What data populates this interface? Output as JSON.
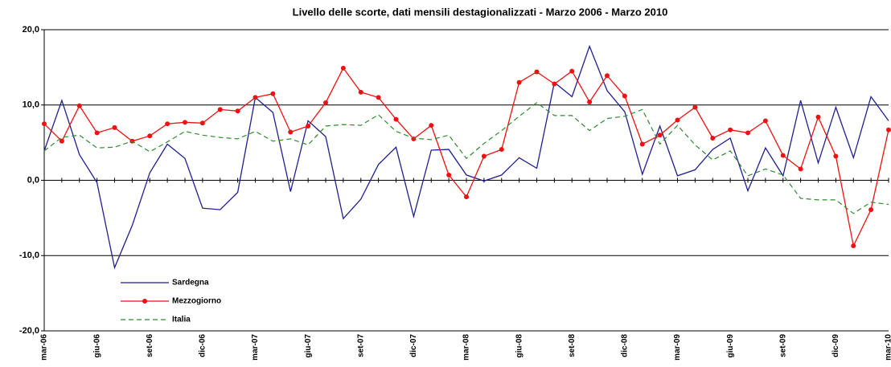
{
  "chart_data": {
    "type": "line",
    "title": "Livello delle scorte, dati mensili destagionalizzati - Marzo 2006 - Marzo 2010",
    "categories": [
      "mar-06",
      null,
      null,
      "giu-06",
      null,
      null,
      "set-06",
      null,
      null,
      "dic-06",
      null,
      null,
      "mar-07",
      null,
      null,
      "giu-07",
      null,
      null,
      "set-07",
      null,
      null,
      "dic-07",
      null,
      null,
      "mar-08",
      null,
      null,
      "giu-08",
      null,
      null,
      "set-08",
      null,
      null,
      "dic-08",
      null,
      null,
      "mar-09",
      null,
      null,
      "giu-09",
      null,
      null,
      "set-09",
      null,
      null,
      "dic-09",
      null,
      null,
      "mar-10"
    ],
    "series": [
      {
        "name": "Sardegna",
        "color": "#1f1f8f",
        "line_style": "solid",
        "marker": "none",
        "values": [
          3.9,
          10.6,
          3.4,
          -0.3,
          -11.6,
          -6.0,
          1.0,
          4.8,
          2.9,
          -3.7,
          -3.9,
          -1.6,
          11.0,
          9.0,
          -1.5,
          7.9,
          5.8,
          -5.1,
          -2.5,
          2.1,
          4.4,
          -4.8,
          4.0,
          4.1,
          0.7,
          -0.1,
          0.7,
          3.0,
          1.6,
          13.0,
          11.1,
          17.8,
          11.9,
          9.1,
          0.8,
          7.2,
          0.6,
          1.4,
          4.1,
          5.6,
          -1.4,
          4.3,
          0.6,
          10.6,
          2.3,
          9.7,
          3.0,
          11.1,
          7.9
        ]
      },
      {
        "name": "Mezzogiorno",
        "color": "#ee1111",
        "line_style": "solid",
        "marker": "circle",
        "values": [
          7.5,
          5.2,
          9.9,
          6.3,
          7.0,
          5.2,
          5.9,
          7.5,
          7.7,
          7.6,
          9.4,
          9.2,
          11.0,
          11.5,
          6.4,
          7.2,
          10.3,
          14.9,
          11.7,
          11.0,
          8.1,
          5.5,
          7.3,
          0.7,
          -2.2,
          3.2,
          4.1,
          13.0,
          14.4,
          12.8,
          14.5,
          10.4,
          13.9,
          11.2,
          4.8,
          6.0,
          8.0,
          9.7,
          5.6,
          6.7,
          6.3,
          7.9,
          3.3,
          1.5,
          8.4,
          3.2,
          -8.7,
          -3.9,
          6.7
        ]
      },
      {
        "name": "Italia",
        "color": "#2e8b2e",
        "line_style": "dashed",
        "marker": "none",
        "values": [
          3.9,
          5.7,
          6.0,
          4.3,
          4.4,
          5.2,
          3.8,
          5.1,
          6.5,
          6.0,
          5.7,
          5.5,
          6.5,
          5.2,
          5.5,
          4.7,
          7.2,
          7.4,
          7.3,
          8.7,
          6.5,
          5.6,
          5.4,
          6.0,
          2.9,
          4.9,
          6.6,
          8.5,
          10.3,
          8.6,
          8.6,
          6.6,
          8.2,
          8.5,
          9.4,
          4.8,
          7.3,
          4.7,
          2.7,
          3.9,
          0.6,
          1.5,
          0.7,
          -2.4,
          -2.6,
          -2.6,
          -4.4,
          -2.9,
          -3.2
        ]
      }
    ],
    "ylim": [
      -20,
      20
    ],
    "yticks": [
      {
        "value": -20,
        "label": "-20,0"
      },
      {
        "value": -10,
        "label": "-10,0"
      },
      {
        "value": 0,
        "label": "0,0"
      },
      {
        "value": 10,
        "label": "10,0"
      },
      {
        "value": 20,
        "label": "20,0"
      }
    ],
    "grid": true,
    "legend": "lower left"
  }
}
